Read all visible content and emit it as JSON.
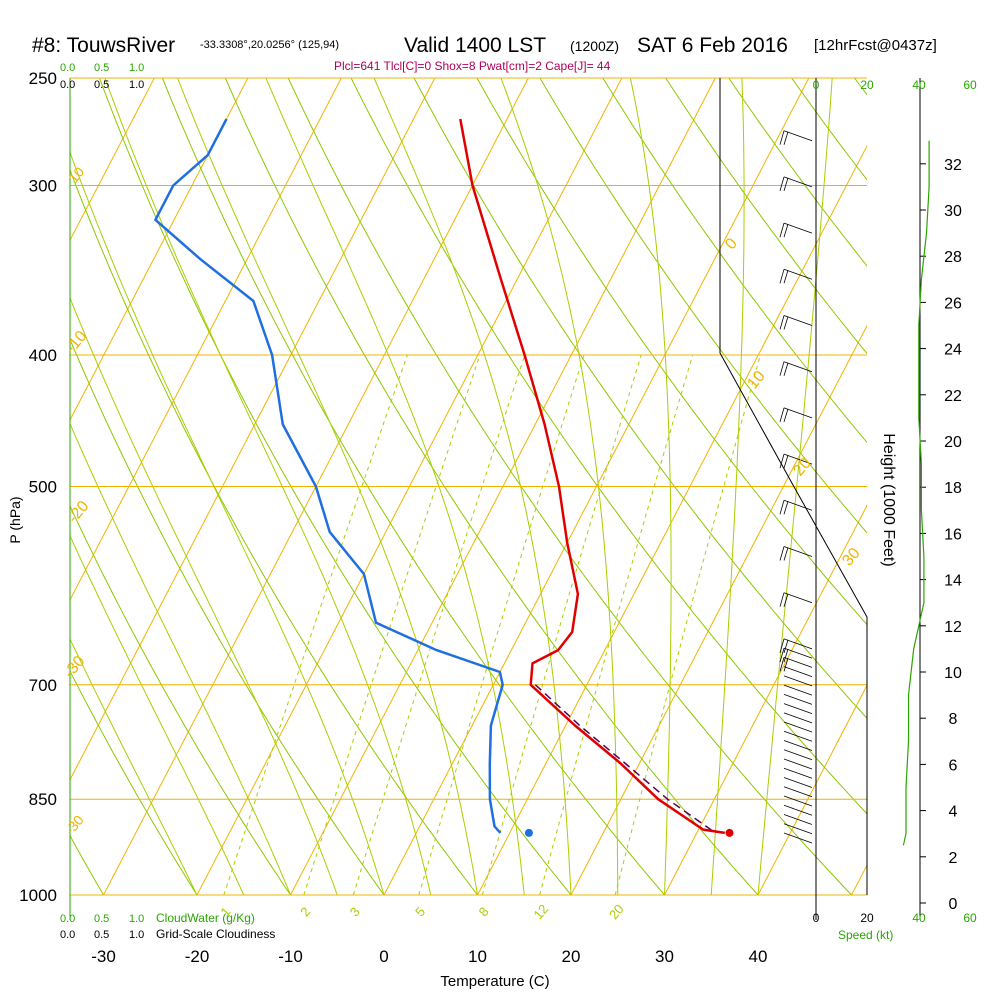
{
  "header": {
    "station": "#8: TouwsRiver",
    "coords": "-33.3308°,20.0256° (125,94)",
    "valid": "Valid 1400 LST",
    "zulu": "(1200Z)",
    "date": "SAT 6 Feb 2016",
    "forecast": "[12hrFcst@0437z]",
    "indices": "Plcl=641 Tlcl[C]=0 Shox=8 Pwat[cm]=2 Cape[J]= 44"
  },
  "colors": {
    "temperature": "#e00000",
    "dewpoint": "#1f6fe0",
    "isobar": "#f0b400",
    "isotherm": "#f0b400",
    "dry_adiabat": "#8ec800",
    "moist_adiabat": "#a8d000",
    "mixing_ratio": "#a8d000",
    "green_label": "#2aa600",
    "magenta": "#b0005a",
    "black": "#000000"
  },
  "labels": {
    "ylabel": "P (hPa)",
    "xlabel": "Temperature (C)",
    "height_label": "Height (1000 Feet)",
    "cloudwater_label": "CloudWater (g/Kg)",
    "cloudiness_label": "Grid-Scale Cloudiness",
    "speed_label": "Speed (kt)"
  },
  "scales": {
    "cloudwater_ticks": [
      "0.0",
      "0.5",
      "1.0"
    ],
    "cloudiness_ticks": [
      "0.0",
      "0.5",
      "1.0"
    ],
    "speed_ticks_black": [
      "0",
      "20",
      "40"
    ],
    "speed_ticks_green": [
      "20",
      "40",
      "60"
    ]
  },
  "chart_data": {
    "type": "skew-t",
    "pressure_axis": {
      "ticks": [
        250,
        300,
        400,
        500,
        700,
        850,
        1000
      ],
      "range": [
        250,
        1000
      ],
      "scale": "log"
    },
    "temperature_axis": {
      "ticks": [
        -30,
        -20,
        -10,
        0,
        10,
        20,
        30,
        40
      ],
      "range": [
        -34,
        45
      ]
    },
    "height_axis": {
      "unit": "1000 ft",
      "ticks": [
        0,
        2,
        4,
        6,
        8,
        10,
        12,
        14,
        16,
        18,
        20,
        22,
        24,
        26,
        28,
        30,
        32
      ]
    },
    "isotherm_labels": [
      "0",
      "10",
      "20",
      "30",
      "-10",
      "-20",
      "-30"
    ],
    "mixing_ratio_labels": [
      "1",
      "2",
      "3",
      "5",
      "8",
      "12",
      "20"
    ],
    "temperature_profile": [
      {
        "p": 268,
        "t": -35
      },
      {
        "p": 300,
        "t": -30
      },
      {
        "p": 350,
        "t": -22
      },
      {
        "p": 400,
        "t": -15
      },
      {
        "p": 450,
        "t": -9
      },
      {
        "p": 500,
        "t": -4
      },
      {
        "p": 550,
        "t": 0
      },
      {
        "p": 600,
        "t": 4
      },
      {
        "p": 640,
        "t": 5.5
      },
      {
        "p": 660,
        "t": 5
      },
      {
        "p": 675,
        "t": 3
      },
      {
        "p": 700,
        "t": 4
      },
      {
        "p": 750,
        "t": 11
      },
      {
        "p": 800,
        "t": 18
      },
      {
        "p": 850,
        "t": 24
      },
      {
        "p": 895,
        "t": 30.5
      },
      {
        "p": 900,
        "t": 33
      }
    ],
    "dewpoint_profile": [
      {
        "p": 268,
        "t": -60
      },
      {
        "p": 285,
        "t": -60
      },
      {
        "p": 300,
        "t": -62
      },
      {
        "p": 318,
        "t": -62
      },
      {
        "p": 340,
        "t": -55
      },
      {
        "p": 365,
        "t": -47
      },
      {
        "p": 400,
        "t": -42
      },
      {
        "p": 450,
        "t": -37
      },
      {
        "p": 500,
        "t": -30
      },
      {
        "p": 540,
        "t": -26
      },
      {
        "p": 580,
        "t": -20
      },
      {
        "p": 630,
        "t": -16
      },
      {
        "p": 660,
        "t": -8
      },
      {
        "p": 685,
        "t": 0
      },
      {
        "p": 700,
        "t": 1
      },
      {
        "p": 750,
        "t": 2
      },
      {
        "p": 800,
        "t": 4
      },
      {
        "p": 850,
        "t": 6
      },
      {
        "p": 890,
        "t": 8
      },
      {
        "p": 900,
        "t": 9
      }
    ],
    "parcel_path": [
      {
        "p": 700,
        "t": 4.5
      },
      {
        "p": 750,
        "t": 11.5
      },
      {
        "p": 800,
        "t": 18.5
      },
      {
        "p": 850,
        "t": 25
      },
      {
        "p": 900,
        "t": 32
      }
    ],
    "surface": {
      "p": 900,
      "t": 33.5,
      "td": 15.5
    },
    "cloud_water_profile": [
      {
        "p": 268,
        "v": 0
      },
      {
        "p": 1000,
        "v": 0
      }
    ],
    "wind_speed_profile": [
      {
        "h": 33,
        "kt": 44
      },
      {
        "h": 31,
        "kt": 44
      },
      {
        "h": 29,
        "kt": 43
      },
      {
        "h": 27,
        "kt": 41
      },
      {
        "h": 25,
        "kt": 40
      },
      {
        "h": 23,
        "kt": 40
      },
      {
        "h": 21,
        "kt": 40
      },
      {
        "h": 19,
        "kt": 41
      },
      {
        "h": 17,
        "kt": 41
      },
      {
        "h": 15,
        "kt": 42
      },
      {
        "h": 13,
        "kt": 42
      },
      {
        "h": 11,
        "kt": 38
      },
      {
        "h": 9,
        "kt": 36
      },
      {
        "h": 7,
        "kt": 36
      },
      {
        "h": 5,
        "kt": 35
      },
      {
        "h": 3,
        "kt": 35
      },
      {
        "h": 2.5,
        "kt": 34
      }
    ]
  }
}
